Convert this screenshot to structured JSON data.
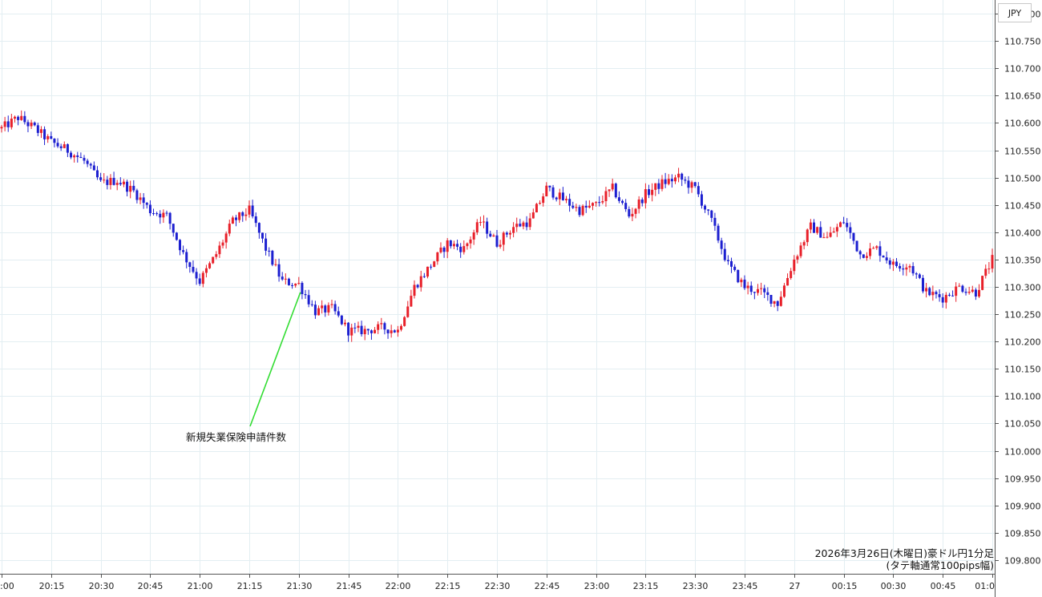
{
  "currency_label": "JPY",
  "caption_line1": "2026年3月26日(木曜日)豪ドル円1分足",
  "caption_line2": "(タテ軸通常100pips幅)",
  "annotation_label": "新規失業保険申請件数",
  "colors": {
    "up": "#e8202a",
    "down": "#1c1fd0",
    "grid": "#e3eef2",
    "annotation": "#33dd33"
  },
  "chart_data": {
    "type": "candlestick",
    "title": "2026年3月26日(木曜日)豪ドル円1分足",
    "subtitle": "(タテ軸通常100pips幅)",
    "y_axis_label": "JPY",
    "ylim": [
      109.775,
      110.825
    ],
    "y_ticks": [
      "110.800",
      "110.750",
      "110.700",
      "110.650",
      "110.600",
      "110.550",
      "110.500",
      "110.450",
      "110.400",
      "110.350",
      "110.300",
      "110.250",
      "110.200",
      "110.150",
      "110.100",
      "110.050",
      "110.000",
      "109.950",
      "109.900",
      "109.850",
      "109.800"
    ],
    "x_ticks": [
      ":00",
      "20:15",
      "20:30",
      "20:45",
      "21:00",
      "21:15",
      "21:30",
      "21:45",
      "22:00",
      "22:15",
      "22:30",
      "22:45",
      "23:00",
      "23:15",
      "23:30",
      "23:45",
      "27",
      "00:15",
      "00:30",
      "00:45",
      "01:0"
    ],
    "x_start": "20:00",
    "x_end": "01:00",
    "interval_minutes": 1,
    "close_path": [
      [
        "20:00",
        110.59
      ],
      [
        "20:05",
        110.61
      ],
      [
        "20:10",
        110.59
      ],
      [
        "20:15",
        110.565
      ],
      [
        "20:20",
        110.55
      ],
      [
        "20:25",
        110.53
      ],
      [
        "20:30",
        110.49
      ],
      [
        "20:35",
        110.495
      ],
      [
        "20:40",
        110.475
      ],
      [
        "20:45",
        110.44
      ],
      [
        "20:50",
        110.43
      ],
      [
        "20:55",
        110.36
      ],
      [
        "21:00",
        110.31
      ],
      [
        "21:05",
        110.36
      ],
      [
        "21:10",
        110.42
      ],
      [
        "21:15",
        110.44
      ],
      [
        "21:20",
        110.37
      ],
      [
        "21:25",
        110.31
      ],
      [
        "21:30",
        110.305
      ],
      [
        "21:35",
        110.255
      ],
      [
        "21:40",
        110.26
      ],
      [
        "21:45",
        110.22
      ],
      [
        "21:50",
        110.22
      ],
      [
        "21:55",
        110.225
      ],
      [
        "22:00",
        110.22
      ],
      [
        "22:05",
        110.3
      ],
      [
        "22:10",
        110.34
      ],
      [
        "22:15",
        110.38
      ],
      [
        "22:20",
        110.37
      ],
      [
        "22:25",
        110.42
      ],
      [
        "22:30",
        110.38
      ],
      [
        "22:35",
        110.41
      ],
      [
        "22:40",
        110.42
      ],
      [
        "22:45",
        110.48
      ],
      [
        "22:50",
        110.46
      ],
      [
        "22:55",
        110.44
      ],
      [
        "23:00",
        110.45
      ],
      [
        "23:05",
        110.48
      ],
      [
        "23:10",
        110.43
      ],
      [
        "23:15",
        110.47
      ],
      [
        "23:20",
        110.49
      ],
      [
        "23:25",
        110.5
      ],
      [
        "23:30",
        110.48
      ],
      [
        "23:35",
        110.42
      ],
      [
        "23:40",
        110.34
      ],
      [
        "23:45",
        110.3
      ],
      [
        "23:50",
        110.29
      ],
      [
        "23:55",
        110.27
      ],
      [
        "00:00",
        110.35
      ],
      [
        "00:05",
        110.41
      ],
      [
        "00:10",
        110.39
      ],
      [
        "00:15",
        110.42
      ],
      [
        "00:20",
        110.36
      ],
      [
        "00:25",
        110.37
      ],
      [
        "00:30",
        110.34
      ],
      [
        "00:35",
        110.34
      ],
      [
        "00:40",
        110.29
      ],
      [
        "00:45",
        110.28
      ],
      [
        "00:50",
        110.3
      ],
      [
        "00:55",
        110.29
      ],
      [
        "01:00",
        110.35
      ]
    ],
    "annotations": [
      {
        "time": "21:30",
        "price": 110.29,
        "label": "新規失業保険申請件数"
      }
    ]
  }
}
